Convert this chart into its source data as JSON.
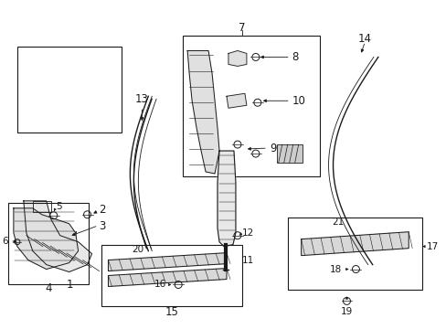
{
  "bg_color": "#ffffff",
  "line_color": "#1a1a1a",
  "fig_width": 4.89,
  "fig_height": 3.6,
  "dpi": 100,
  "fontsize": 8.5
}
